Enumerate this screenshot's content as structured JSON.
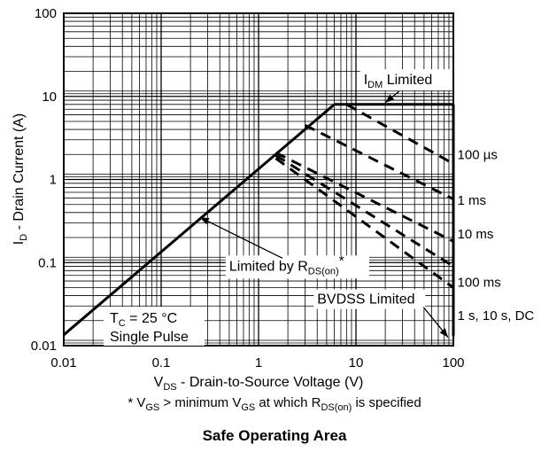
{
  "chart_data": {
    "type": "line",
    "xscale": "log",
    "yscale": "log",
    "xlim": [
      0.01,
      100
    ],
    "ylim": [
      0.01,
      100
    ],
    "grid": true,
    "xticks": [
      "0.01",
      "0.1",
      "1",
      "10",
      "100"
    ],
    "yticks": [
      "0.01",
      "0.1",
      "1",
      "10",
      "100"
    ],
    "xlabel": {
      "main": "V",
      "sub": "DS",
      "rest": " - Drain-to-Source Voltage (V)"
    },
    "ylabel": {
      "main": "I",
      "sub": "D",
      "rest": " - Drain Current (A)"
    },
    "series": [
      {
        "name": "Limited by RDS(on)",
        "style": "solid",
        "points": [
          [
            0.01,
            0.0135
          ],
          [
            6.0,
            8.0
          ]
        ]
      },
      {
        "name": "IDM Limited",
        "style": "solid",
        "points": [
          [
            6.0,
            8.0
          ],
          [
            100,
            8.0
          ]
        ]
      },
      {
        "name": "100 µs",
        "style": "dashed",
        "points": [
          [
            8.0,
            8.0
          ],
          [
            100,
            1.55
          ]
        ]
      },
      {
        "name": "1 ms",
        "style": "dashed",
        "points": [
          [
            3.0,
            4.5
          ],
          [
            100,
            0.58
          ]
        ]
      },
      {
        "name": "10 ms",
        "style": "dashed",
        "points": [
          [
            1.5,
            2.1
          ],
          [
            100,
            0.18
          ]
        ]
      },
      {
        "name": "100 ms",
        "style": "dashed",
        "points": [
          [
            1.5,
            1.95
          ],
          [
            100,
            0.09
          ]
        ]
      },
      {
        "name": "1 s, 10 s, DC",
        "style": "dashed",
        "points": [
          [
            1.5,
            1.8
          ],
          [
            100,
            0.05
          ]
        ]
      },
      {
        "name": "BVDSS Limited",
        "style": "solid",
        "points": [
          [
            100,
            0.013
          ],
          [
            100,
            8.0
          ]
        ]
      }
    ],
    "curve_labels": [
      {
        "text": "100 µs",
        "x": 110,
        "y": 2.0
      },
      {
        "text": "1 ms",
        "x": 110,
        "y": 0.56
      },
      {
        "text": "10 ms",
        "x": 110,
        "y": 0.22
      },
      {
        "text": "100 ms",
        "x": 110,
        "y": 0.058
      },
      {
        "text": "1 s, 10 s, DC",
        "x": 110,
        "y": 0.023
      }
    ],
    "annotations": {
      "idm": {
        "main": "I",
        "sub": "DM",
        "rest": " Limited",
        "x": 12,
        "y": 14,
        "target": [
          20,
          8.0
        ]
      },
      "rds": {
        "pre": "Limited by R",
        "sub": "DS(on)",
        "post": "*",
        "x": 0.5,
        "y": 0.08,
        "target": [
          0.25,
          0.35
        ]
      },
      "bvdss": {
        "text": "BVDSS Limited",
        "x": 4,
        "y": 0.032,
        "target": [
          100,
          0.012
        ]
      }
    },
    "conditions": {
      "line1": {
        "main": "T",
        "sub": "C",
        "rest": " = 25 °C"
      },
      "line2": "Single Pulse"
    },
    "footnote": {
      "p1": "* V",
      "s1": "GS",
      "p2": " > minimum V",
      "s2": "GS",
      "p3": " at which R",
      "s3": "DS(on)",
      "p4": " is specified"
    },
    "title": "Safe Operating Area"
  }
}
